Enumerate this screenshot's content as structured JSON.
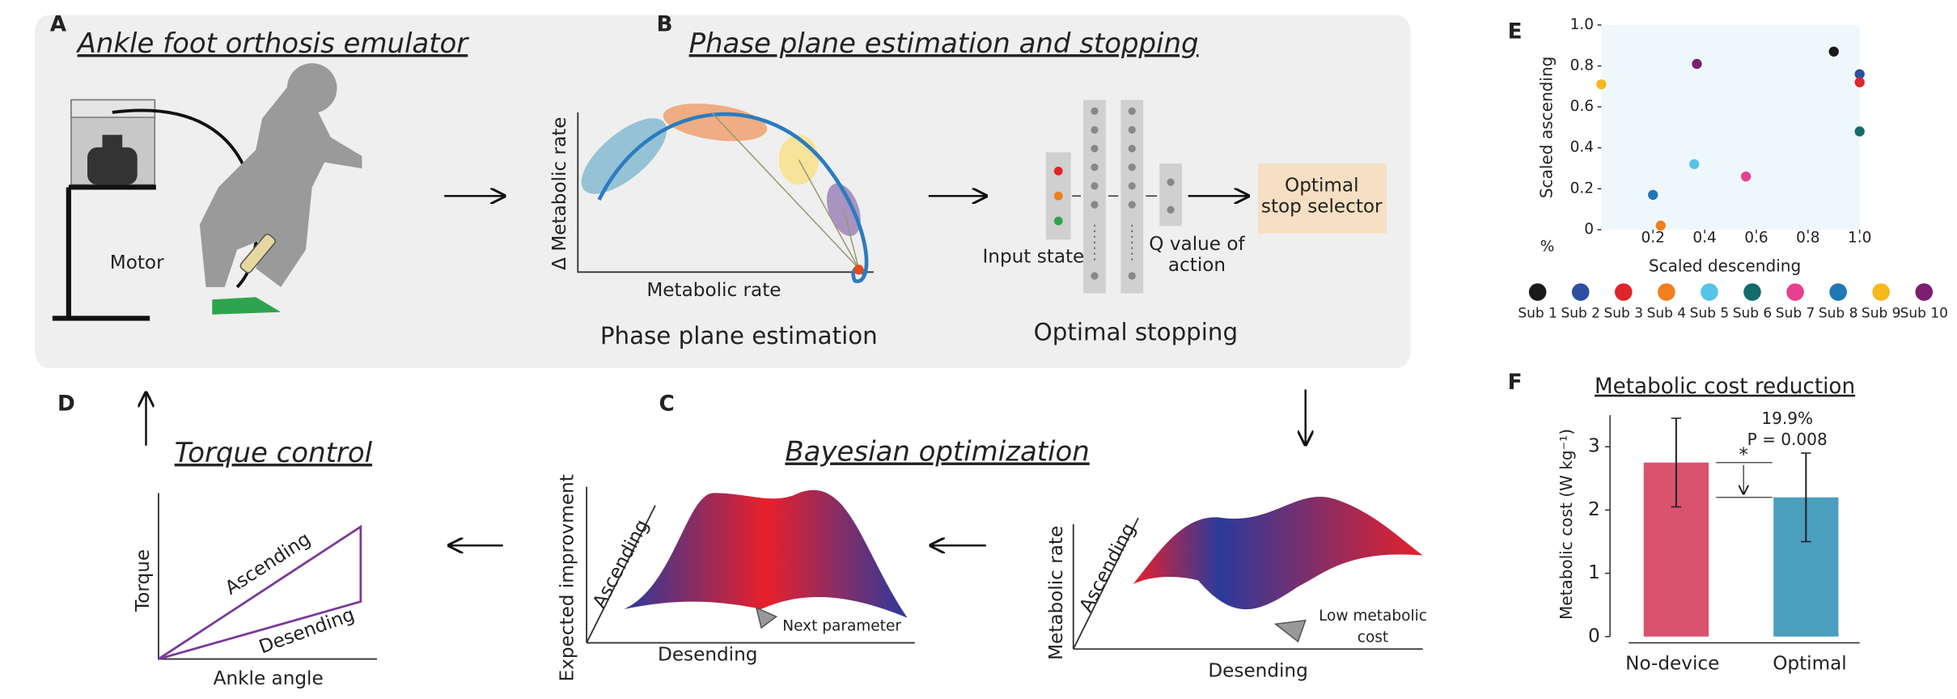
{
  "panel_a": {
    "letter": "A",
    "title": "Ankle foot orthosis emulator",
    "motor": "Motor"
  },
  "panel_b": {
    "letter": "B",
    "title": "Phase plane estimation and stopping",
    "y_label": "Δ Metabolic rate",
    "x_label": "Metabolic rate",
    "caption_left": "Phase plane estimation",
    "input_state": "Input state",
    "q_value": [
      "Q value of",
      "action"
    ],
    "selector": [
      "Optimal",
      "stop selector"
    ],
    "caption_right": "Optimal stopping"
  },
  "panel_c": {
    "letter": "C",
    "title": "Bayesian optimization",
    "ei_y": "Expected improvment",
    "ei_depth": "Ascending",
    "ei_x": "Desending",
    "ei_note": "Next parameter",
    "mr_y": "Metabolic rate",
    "mr_depth": "Ascending",
    "mr_x": "Desending",
    "mr_note": [
      "Low metabolic",
      "cost"
    ]
  },
  "panel_d": {
    "letter": "D",
    "title": "Torque control",
    "y_label": "Torque",
    "x_label": "Ankle angle",
    "upper": "Ascending",
    "lower": "Desending"
  },
  "chart_data": [
    {
      "type": "scatter",
      "letter": "E",
      "x_label": "Scaled descending",
      "y_label": "Scaled ascending",
      "note": "%",
      "xlim": [
        0,
        1
      ],
      "ylim": [
        0,
        1
      ],
      "xticks": [
        0.2,
        0.4,
        0.6,
        0.8,
        {
          "value": 1,
          "label": "1.0"
        }
      ],
      "yticks": [
        0,
        0.2,
        0.4,
        0.6,
        0.8,
        {
          "value": 1,
          "label": "1.0"
        }
      ],
      "background": "#eef7fc",
      "series": [
        {
          "name": "Sub 1",
          "color": "#1a1a1a",
          "x": [
            0.9
          ],
          "y": [
            0.87
          ]
        },
        {
          "name": "Sub 2",
          "color": "#2c4fa3",
          "x": [
            1.0
          ],
          "y": [
            0.76
          ]
        },
        {
          "name": "Sub 3",
          "color": "#e0242b",
          "x": [
            1.0
          ],
          "y": [
            0.72
          ]
        },
        {
          "name": "Sub 4",
          "color": "#f07f1e",
          "x": [
            0.23
          ],
          "y": [
            0.02
          ]
        },
        {
          "name": "Sub 5",
          "color": "#56c3e8",
          "x": [
            0.36
          ],
          "y": [
            0.32
          ]
        },
        {
          "name": "Sub 6",
          "color": "#146b6b",
          "x": [
            1.0
          ],
          "y": [
            0.48
          ]
        },
        {
          "name": "Sub 7",
          "color": "#e5418f",
          "x": [
            0.56
          ],
          "y": [
            0.26
          ]
        },
        {
          "name": "Sub 8",
          "color": "#1f77b4",
          "x": [
            0.2
          ],
          "y": [
            0.17
          ]
        },
        {
          "name": "Sub 9",
          "color": "#f7b81c",
          "x": [
            0.0
          ],
          "y": [
            0.71
          ]
        },
        {
          "name": "Sub 10",
          "color": "#7b1f6e",
          "x": [
            0.37
          ],
          "y": [
            0.81
          ]
        }
      ]
    },
    {
      "type": "bar",
      "letter": "F",
      "title": "Metabolic cost reduction",
      "y_label": "Metabolic cost  (W kg⁻¹)",
      "categories": [
        "No-device",
        "Optimal"
      ],
      "values": [
        2.75,
        2.2
      ],
      "errors": [
        0.7,
        0.7
      ],
      "colors": [
        "#d9536f",
        "#4a9fbf"
      ],
      "ylim": [
        0,
        3.5
      ],
      "yticks": [
        0,
        1,
        2,
        3
      ],
      "annotations": {
        "significance": "*",
        "reduction": "19.9%",
        "p_value": "P = 0.008"
      }
    }
  ]
}
